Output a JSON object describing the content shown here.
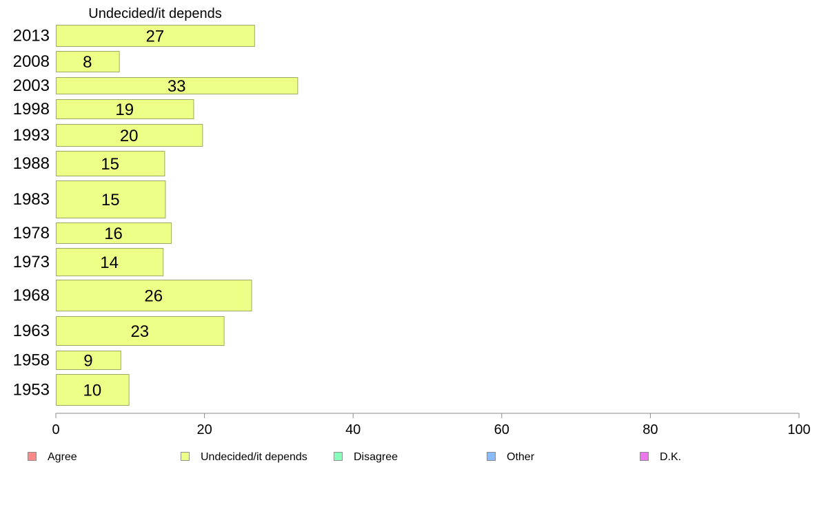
{
  "chart_data": {
    "type": "bar",
    "orientation": "horizontal",
    "title": "Undecided/it depends",
    "categories": [
      "2013",
      "2008",
      "2003",
      "1998",
      "1993",
      "1988",
      "1983",
      "1978",
      "1973",
      "1968",
      "1963",
      "1958",
      "1953"
    ],
    "series": [
      {
        "name": "Undecided/it depends",
        "color": "#eeff88",
        "values": [
          27,
          8,
          33,
          19,
          20,
          15,
          15,
          16,
          14,
          26,
          23,
          9,
          10
        ],
        "bar_values": [
          26.7,
          8.5,
          32.5,
          18.5,
          19.7,
          14.6,
          14.7,
          15.5,
          14.4,
          26.3,
          22.6,
          8.7,
          9.8
        ]
      }
    ],
    "xlim": [
      0,
      100
    ],
    "xticks": [
      "0",
      "20",
      "40",
      "60",
      "80",
      "100"
    ],
    "legend": {
      "placement": "bottom",
      "items": [
        {
          "label": "Agree",
          "color": "#ff8888"
        },
        {
          "label": "Undecided/it depends",
          "color": "#eeff88"
        },
        {
          "label": "Disagree",
          "color": "#88ffbb"
        },
        {
          "label": "Other",
          "color": "#88bbff"
        },
        {
          "label": "D.K.",
          "color": "#ee77ee"
        }
      ]
    }
  }
}
